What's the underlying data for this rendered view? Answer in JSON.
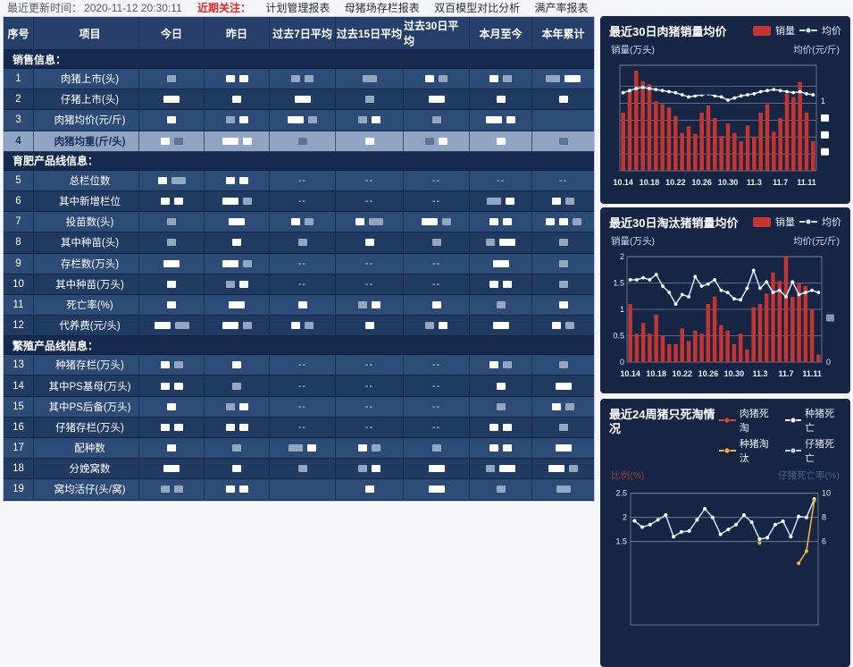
{
  "topbar": {
    "updated_label": "最近更新时间：",
    "updated_value": "2020-11-12 20:30:11",
    "focus_label": "近期关注：",
    "links": [
      "计划管理报表",
      "母猪场存栏报表",
      "双百模型对比分析",
      "满产率报表"
    ]
  },
  "table": {
    "headers": [
      "序号",
      "项目",
      "今日",
      "昨日",
      "过去7日平均",
      "过去15日平均",
      "过去30日平均",
      "本月至今",
      "本年累计"
    ],
    "rows": [
      {
        "type": "section",
        "label": "销售信息："
      },
      {
        "type": "data",
        "num": "1",
        "label": "肉猪上市(头)",
        "cells": [
          "g1",
          "w1 w1",
          "g1 g1",
          "g2",
          "w1 g1",
          "w1 g1",
          "g2 w2"
        ]
      },
      {
        "type": "data",
        "num": "2",
        "label": "仔猪上市(头)",
        "cells": [
          "w2",
          "w1",
          "w2",
          "g1",
          "w2",
          "w1",
          "w1"
        ]
      },
      {
        "type": "data",
        "num": "3",
        "label": "肉猪均价(元/斤)",
        "cells": [
          "w1",
          "g1 w1",
          "w2 g1",
          "g1 w1",
          "g1",
          "w2 w1",
          ""
        ]
      },
      {
        "type": "data",
        "num": "4",
        "label": "肉猪均重(斤/头)",
        "highlight": true,
        "cells": [
          "w1 g1",
          "w2 w1",
          "g1",
          "w1",
          "g1 w1",
          "w1",
          "g1"
        ]
      },
      {
        "type": "section",
        "label": "育肥产品线信息："
      },
      {
        "type": "data",
        "num": "5",
        "label": "总栏位数",
        "cells": [
          "w1 g2",
          "w1 w1",
          "d",
          "d",
          "d",
          "d",
          "d"
        ]
      },
      {
        "type": "data",
        "num": "6",
        "label": "其中新增栏位",
        "cells": [
          "w1 w1",
          "w2 g1",
          "d",
          "d",
          "d",
          "g2 w1",
          "w1 g1"
        ]
      },
      {
        "type": "data",
        "num": "7",
        "label": "投苗数(头)",
        "cells": [
          "g1",
          "w2",
          "w1 g1",
          "w1 g2",
          "w2 g1",
          "w1 w1",
          "w1 w1 g1"
        ]
      },
      {
        "type": "data",
        "num": "8",
        "label": "其中种苗(头)",
        "cells": [
          "g1",
          "w1",
          "g1",
          "w1",
          "g1",
          "g1 w2",
          "g1"
        ]
      },
      {
        "type": "data",
        "num": "9",
        "label": "存栏数(万头)",
        "cells": [
          "w2",
          "w2 g1",
          "d",
          "d",
          "d",
          "w2",
          "g1"
        ]
      },
      {
        "type": "data",
        "num": "10",
        "label": "其中种苗(万头)",
        "cells": [
          "w1",
          "g1 w1",
          "d",
          "d",
          "d",
          "w1 w1",
          "g1"
        ]
      },
      {
        "type": "data",
        "num": "11",
        "label": "死亡率(%)",
        "cells": [
          "w1",
          "w2",
          "w1",
          "g1 w1",
          "w1",
          "g1",
          "w1"
        ]
      },
      {
        "type": "data",
        "num": "12",
        "label": "代养费(元/头)",
        "cells": [
          "w2 g2",
          "w2 g1",
          "w1 g1",
          "w1",
          "g1 w1",
          "w2",
          "w1 g1"
        ]
      },
      {
        "type": "section",
        "label": "繁殖产品线信息："
      },
      {
        "type": "data",
        "num": "13",
        "label": "种猪存栏(万头)",
        "cells": [
          "w1 g1",
          "w1",
          "d",
          "d",
          "d",
          "w1 g1",
          "g1"
        ]
      },
      {
        "type": "data",
        "num": "14",
        "label": "其中PS基母(万头)",
        "cells": [
          "w1 w1",
          "g1",
          "d",
          "d",
          "d",
          "w1",
          "w2"
        ]
      },
      {
        "type": "data",
        "num": "15",
        "label": "其中PS后备(万头)",
        "cells": [
          "w1",
          "g1 w1",
          "d",
          "d",
          "d",
          "g1",
          "w1 g1"
        ]
      },
      {
        "type": "data",
        "num": "16",
        "label": "仔猪存栏(万头)",
        "cells": [
          "w1 w1",
          "w1 w1",
          "d",
          "d",
          "d",
          "w1 w1",
          "g1"
        ]
      },
      {
        "type": "data",
        "num": "17",
        "label": "配种数",
        "cells": [
          "w1",
          "g1",
          "g2 w1",
          "w1 g1",
          "g1",
          "w1 w1",
          "w2"
        ]
      },
      {
        "type": "data",
        "num": "18",
        "label": "分娩窝数",
        "cells": [
          "w2",
          "w1",
          "g1",
          "g1 w1",
          "w2",
          "g1 w2",
          "w2 g1"
        ]
      },
      {
        "type": "data",
        "num": "19",
        "label": "窝均活仔(头/窝)",
        "cells": [
          "g1 g1",
          "w1 w1",
          "",
          "w1",
          "w2",
          "g1",
          "g2"
        ]
      }
    ]
  },
  "chart_data": [
    {
      "type": "bar+line",
      "title": "最近30日肉猪销量均价",
      "legend": [
        {
          "label": "销量",
          "marker": "bar",
          "color": "#c23531"
        },
        {
          "label": "均价",
          "marker": "line",
          "color": "#cfe6fa"
        }
      ],
      "y_left_name": "销量(万头)",
      "y_right_name": "均价(元/斤)",
      "x_labels": [
        "10.14",
        "10.18",
        "10.22",
        "10.26",
        "10.30",
        "11.3",
        "11.7",
        "11.11"
      ],
      "x_label_step": 4,
      "bars_pct": [
        55,
        75,
        95,
        85,
        82,
        66,
        63,
        60,
        52,
        36,
        42,
        35,
        55,
        62,
        50,
        33,
        45,
        36,
        28,
        43,
        32,
        55,
        63,
        37,
        50,
        73,
        70,
        84,
        55,
        28
      ],
      "line_pct": [
        74,
        76,
        78,
        79,
        78,
        77,
        76,
        75,
        74,
        72,
        70,
        71,
        72,
        73,
        71,
        70,
        67,
        69,
        71,
        72,
        73,
        75,
        76,
        77,
        76,
        75,
        74,
        75,
        73,
        72
      ],
      "gridline_pcts": [
        16,
        32,
        48,
        64,
        80,
        100
      ],
      "left_ticks": [],
      "right_ticks": [
        {
          "label": "1",
          "pct": 66
        },
        {
          "redacted": true,
          "pct": 50
        },
        {
          "redacted": true,
          "pct": 34
        },
        {
          "redacted": true,
          "pct": 18
        }
      ],
      "blobs": [
        {
          "x_pct": 36,
          "y_pct": 76,
          "w": 48,
          "h": 9
        }
      ],
      "pad_left": 12,
      "pad_right": 26
    },
    {
      "type": "bar+line",
      "title": "最近30日淘汰猪销量均价",
      "legend": [
        {
          "label": "销量",
          "marker": "bar",
          "color": "#c23531"
        },
        {
          "label": "均价",
          "marker": "line",
          "color": "#cfe6fa"
        }
      ],
      "y_left_name": "销量(万头)",
      "y_right_name": "均价(元/斤)",
      "x_labels": [
        "10.14",
        "10.18",
        "10.22",
        "10.26",
        "10.30",
        "11.3",
        "11.7",
        "11.11"
      ],
      "x_label_step": 4,
      "bars_pct": [
        55,
        27,
        37,
        27,
        45,
        25,
        17,
        17,
        32,
        20,
        30,
        27,
        55,
        62,
        35,
        30,
        17,
        27,
        12,
        52,
        55,
        65,
        85,
        77,
        100,
        62,
        75,
        72,
        50,
        7
      ],
      "line_pct": [
        78,
        78,
        80,
        78,
        83,
        72,
        66,
        55,
        64,
        62,
        81,
        72,
        74,
        78,
        68,
        66,
        60,
        59,
        70,
        87,
        70,
        76,
        66,
        68,
        62,
        76,
        64,
        66,
        68,
        66
      ],
      "gridline_pcts": [
        25,
        50,
        75,
        100
      ],
      "left_ticks": [
        {
          "label": "2",
          "pct": 100
        },
        {
          "label": "1.5",
          "pct": 75
        },
        {
          "label": "1",
          "pct": 50
        },
        {
          "label": "0.5",
          "pct": 25
        },
        {
          "label": "0",
          "pct": 0
        }
      ],
      "right_ticks": [
        {
          "redacted": true,
          "pct": 42
        },
        {
          "label": "0",
          "pct": 0
        }
      ],
      "blobs": [],
      "pad_left": 20,
      "pad_right": 20
    },
    {
      "type": "line",
      "title": "最近24周猪只死淘情况",
      "legend": [
        {
          "label": "肉猪死淘",
          "color": "#e0483b"
        },
        {
          "label": "种猪死亡",
          "color": "#ffffff"
        },
        {
          "label": "种猪淘汰",
          "color": "#f0b33c"
        },
        {
          "label": "仔猪死亡",
          "color": "#bcd8f0"
        }
      ],
      "y_left_name": "比例(%)",
      "y_right_name": "仔猪死亡率(%)",
      "x_count": 24,
      "ymax": 2.55,
      "yticks": [
        {
          "left": "2.5",
          "right": "10",
          "value": 2.5
        },
        {
          "left": "2",
          "right": "8",
          "value": 2.0
        },
        {
          "left": "1.5",
          "right": "6",
          "value": 1.5
        }
      ],
      "series": [
        {
          "name": "仔猪死亡",
          "color": "#bcd8f0",
          "dot": "#ffffff",
          "values": [
            1.93,
            1.8,
            1.85,
            1.95,
            2.05,
            1.6,
            1.7,
            1.72,
            1.95,
            2.18,
            2.0,
            1.65,
            1.75,
            1.85,
            2.05,
            1.9,
            1.55,
            1.58,
            1.85,
            1.92,
            1.6,
            2.02,
            2.0,
            2.38
          ]
        },
        {
          "name": "种猪淘汰",
          "color": "#f0b33c",
          "dot": "#f0b33c",
          "values": [
            null,
            null,
            null,
            null,
            null,
            null,
            null,
            null,
            null,
            null,
            null,
            null,
            null,
            null,
            null,
            null,
            1.47,
            null,
            null,
            null,
            null,
            1.05,
            1.3,
            2.35
          ]
        }
      ]
    }
  ]
}
